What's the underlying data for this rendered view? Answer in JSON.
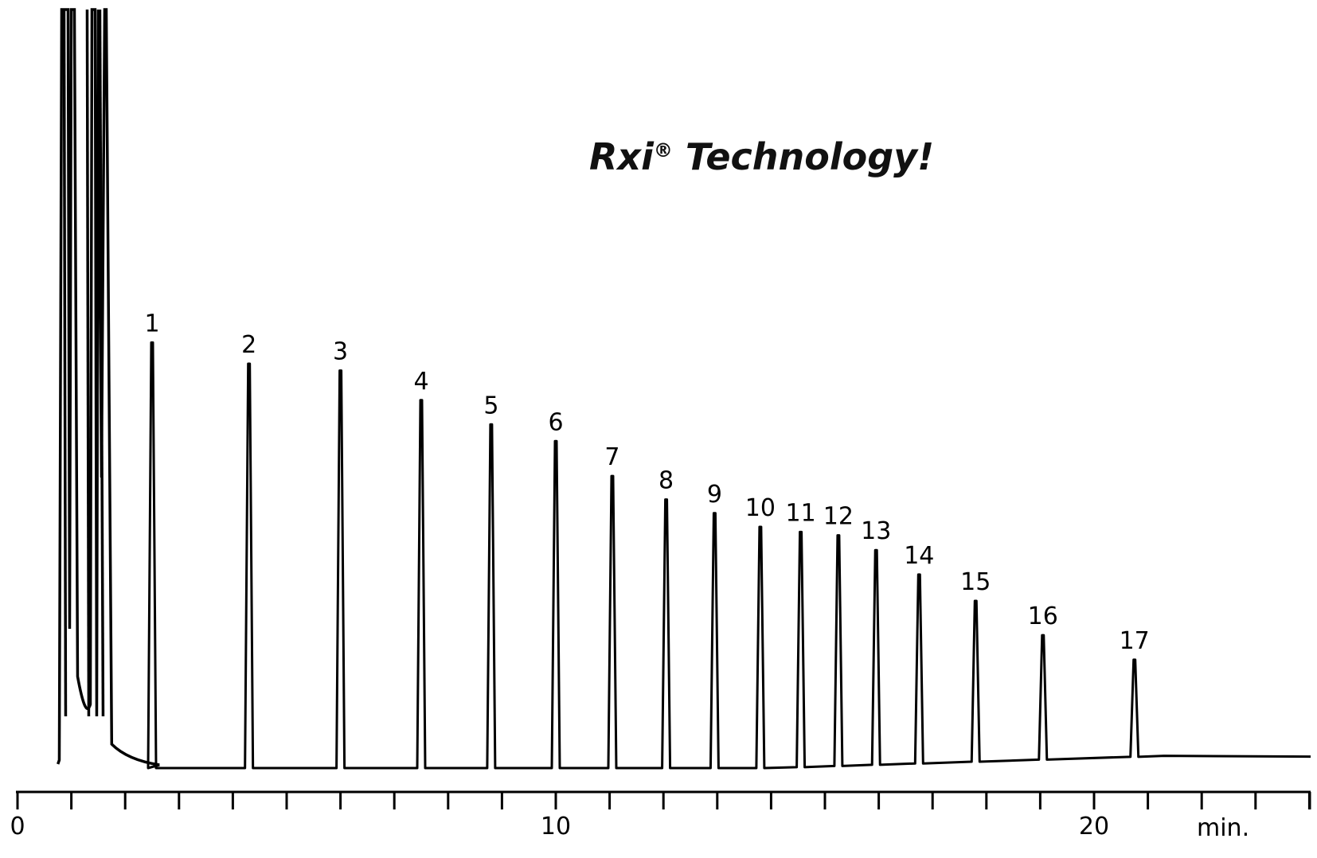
{
  "chart_data": {
    "type": "line",
    "title": "Rxi® Technology!",
    "xlabel": "min.",
    "ylabel": "",
    "xlim": [
      0,
      24
    ],
    "x_ticks": [
      0,
      10,
      20
    ],
    "x_minor_tick_step": 1,
    "grid": false,
    "ylim": [
      0,
      100
    ],
    "solvent_front": {
      "start": 0.85,
      "end": 1.75
    },
    "series": [
      {
        "peaks": [
          {
            "label": "1",
            "retention_time": 2.5,
            "height": 56.1
          },
          {
            "label": "2",
            "retention_time": 4.3,
            "height": 53.3
          },
          {
            "label": "3",
            "retention_time": 6.0,
            "height": 52.4
          },
          {
            "label": "4",
            "retention_time": 7.5,
            "height": 48.5
          },
          {
            "label": "5",
            "retention_time": 8.8,
            "height": 45.3
          },
          {
            "label": "6",
            "retention_time": 10.0,
            "height": 43.1
          },
          {
            "label": "7",
            "retention_time": 11.05,
            "height": 38.5
          },
          {
            "label": "8",
            "retention_time": 12.05,
            "height": 35.4
          },
          {
            "label": "9",
            "retention_time": 12.95,
            "height": 33.6
          },
          {
            "label": "10",
            "retention_time": 13.8,
            "height": 31.8
          },
          {
            "label": "11",
            "retention_time": 14.55,
            "height": 31.0
          },
          {
            "label": "12",
            "retention_time": 15.25,
            "height": 30.4
          },
          {
            "label": "13",
            "retention_time": 15.95,
            "height": 28.3
          },
          {
            "label": "14",
            "retention_time": 16.75,
            "height": 24.9
          },
          {
            "label": "15",
            "retention_time": 17.8,
            "height": 21.2
          },
          {
            "label": "16",
            "retention_time": 19.05,
            "height": 16.4
          },
          {
            "label": "17",
            "retention_time": 20.75,
            "height": 12.8
          }
        ]
      }
    ]
  }
}
